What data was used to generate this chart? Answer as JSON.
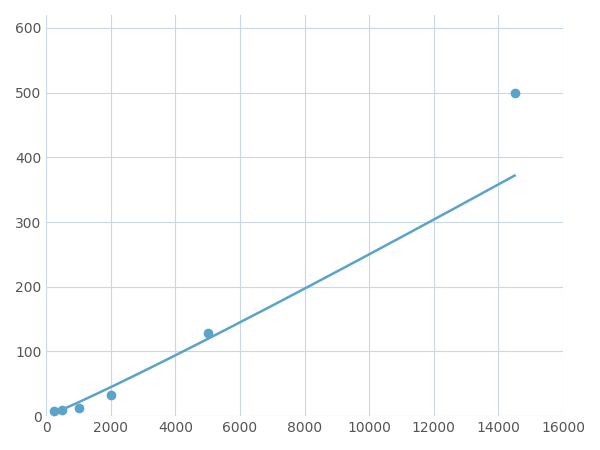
{
  "x_data": [
    250,
    500,
    1000,
    2000,
    5000,
    14500
  ],
  "y_data": [
    8,
    10,
    13,
    32,
    128,
    500
  ],
  "line_color": "#5ba3c9",
  "marker_color": "#5ba3c9",
  "marker_size": 7,
  "linewidth": 1.8,
  "xlim": [
    0,
    16000
  ],
  "ylim": [
    0,
    620
  ],
  "xticks": [
    0,
    2000,
    4000,
    6000,
    8000,
    10000,
    12000,
    14000,
    16000
  ],
  "yticks": [
    0,
    100,
    200,
    300,
    400,
    500,
    600
  ],
  "grid_color": "#c8d8e8",
  "grid_linestyle": "-",
  "grid_linewidth": 0.8,
  "bg_color": "#ffffff",
  "figsize": [
    6.0,
    4.5
  ],
  "dpi": 100
}
